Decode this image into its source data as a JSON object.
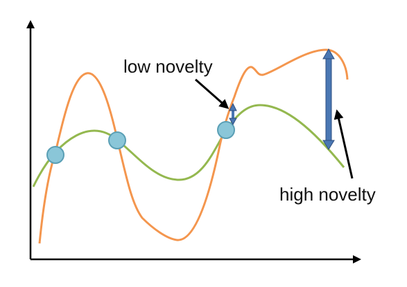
{
  "labels": {
    "low": "low novelty",
    "high": "high novelty"
  },
  "colors": {
    "axis": "#000000",
    "orange_curve": "#f4964e",
    "green_curve": "#94b84f",
    "sample_fill": "#8ac6d8",
    "sample_stroke": "#5a9fb5",
    "novelty_arrow_fill": "#4a77b3",
    "novelty_arrow_stroke": "#2f4f80",
    "pointer": "#000000"
  }
}
